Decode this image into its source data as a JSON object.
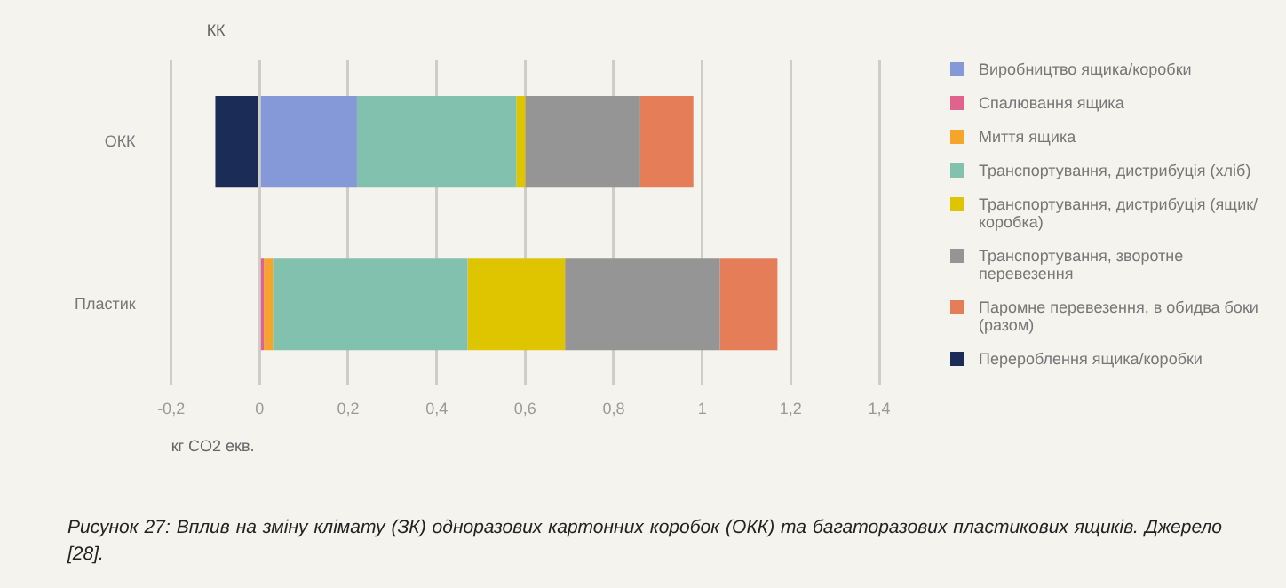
{
  "chart_data": {
    "type": "bar",
    "orientation": "horizontal",
    "stacked": true,
    "ylabel": "КК",
    "xlabel": "кг CO2 екв.",
    "categories": [
      "ОКК",
      "Пластик"
    ],
    "series": [
      {
        "name": "Виробництво ящика/коробки",
        "color": "#8599d8",
        "values": [
          0.22,
          0
        ]
      },
      {
        "name": "Спалювання ящика",
        "color": "#e0638f",
        "values": [
          0,
          0.01
        ]
      },
      {
        "name": "Миття ящика",
        "color": "#f6a52a",
        "values": [
          0,
          0.02
        ]
      },
      {
        "name": "Транспортування, дистрибуція (хліб)",
        "color": "#82c1ad",
        "values": [
          0.36,
          0.44
        ]
      },
      {
        "name": "Транспортування, дистрибуція (ящик/коробка)",
        "color": "#dfc400",
        "values": [
          0.02,
          0.22
        ]
      },
      {
        "name": "Транспортування, зворотне перевезення",
        "color": "#959595",
        "values": [
          0.26,
          0.35
        ]
      },
      {
        "name": "Паромне перевезення, в обидва боки (разом)",
        "color": "#e57e58",
        "values": [
          0.12,
          0.13
        ]
      },
      {
        "name": "Перероблення ящика/коробки",
        "color": "#1b2c57",
        "values": [
          -0.1,
          0
        ]
      }
    ],
    "xlim": [
      -0.2,
      1.4
    ],
    "xticks": [
      {
        "value": -0.2,
        "label": "-0,2"
      },
      0,
      {
        "value": 0.2,
        "label": "0,2"
      },
      {
        "value": 0.4,
        "label": "0,4"
      },
      {
        "value": 0.6,
        "label": "0,6"
      },
      {
        "value": 0.8,
        "label": "0,8"
      },
      1,
      {
        "value": 1.2,
        "label": "1,2"
      },
      {
        "value": 1.4,
        "label": "1,4"
      }
    ],
    "grid": "x",
    "legend": "right",
    "annotations": [
      "Рисунок 27: Вплив на зміну клімату (ЗК) одноразових картонних коробок (ОКК) та багаторазових пластикових ящиків. Джерело [28]."
    ]
  }
}
